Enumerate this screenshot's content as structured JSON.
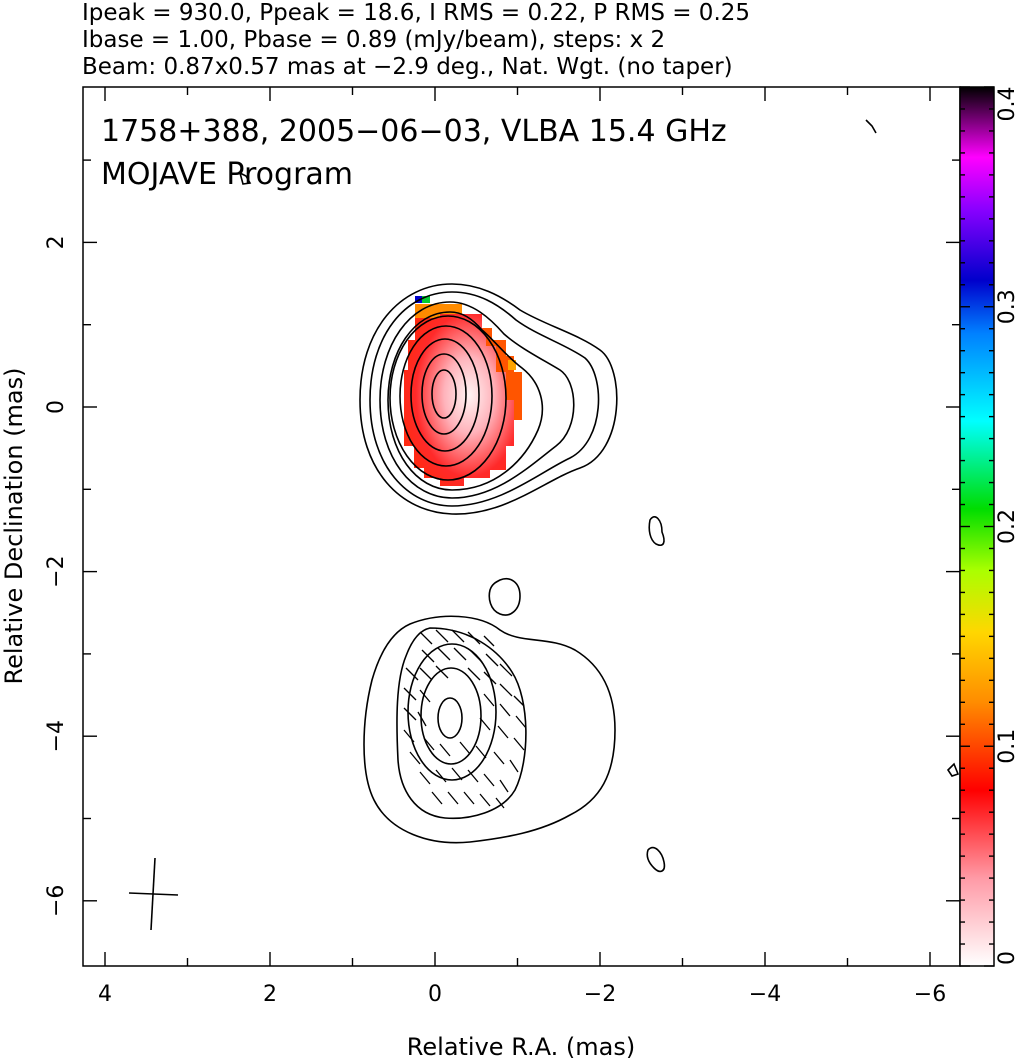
{
  "header": {
    "line1": "Ipeak = 930.0, Ppeak = 18.6, I RMS = 0.22, P RMS = 0.25",
    "line2": "Ibase = 1.00, Pbase = 0.89 (mJy/beam), steps: x 2",
    "line3": "Beam: 0.87x0.57 mas at −2.9 deg., Nat. Wgt. (no taper)"
  },
  "chart_data": {
    "type": "heatmap",
    "title": "1758+388, 2005−06−03, VLBA 15.4 GHz",
    "subtitle": "MOJAVE Program",
    "xlabel": "Relative R.A. (mas)",
    "ylabel": "Relative Declination (mas)",
    "xlim": [
      4.3,
      -6.4
    ],
    "ylim": [
      -6.7,
      3.95
    ],
    "x_ticks": [
      4,
      2,
      0,
      -2,
      -4,
      -6
    ],
    "x_tick_labels": [
      "4",
      "2",
      "0",
      "−2",
      "−4",
      "−6"
    ],
    "y_ticks": [
      2,
      0,
      -2,
      -4,
      -6
    ],
    "y_tick_labels": [
      "2",
      "0",
      "−2",
      "−4",
      "−6"
    ],
    "colorbar": {
      "range": [
        0,
        0.4
      ],
      "ticks": [
        0,
        0.1,
        0.2,
        0.3,
        0.4
      ],
      "tick_labels": [
        "0",
        "0.1",
        "0.2",
        "0.3",
        "0.4"
      ]
    },
    "components": [
      {
        "ra": -0.15,
        "dec": 0.15,
        "contour_levels": 9
      },
      {
        "ra": -0.2,
        "dec": -3.75,
        "contour_levels": 5
      }
    ],
    "beam": {
      "major_mas": 0.87,
      "minor_mas": 0.57,
      "pa_deg": -2.9
    }
  }
}
